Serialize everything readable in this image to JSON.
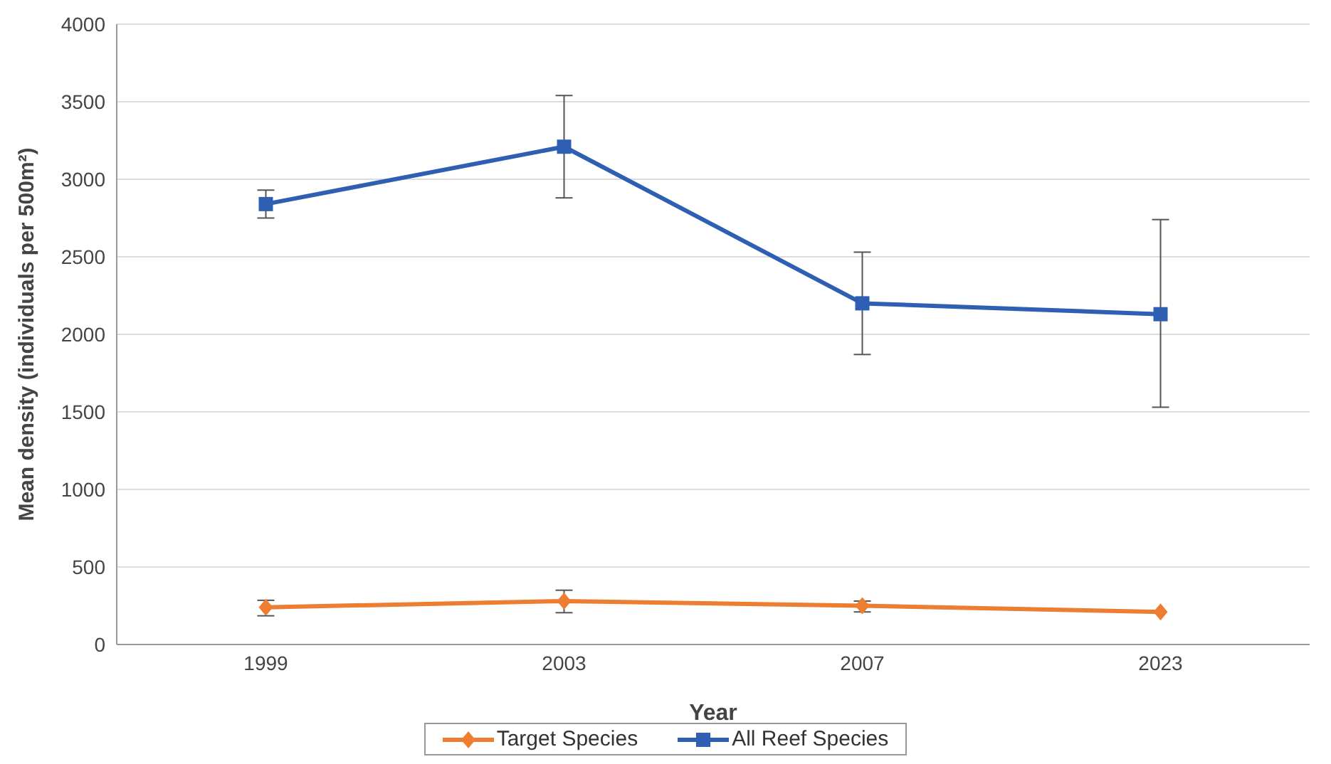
{
  "chart_data": {
    "type": "line",
    "xlabel": "Year",
    "ylabel": "Mean density (individuals per 500m²)",
    "categories": [
      "1999",
      "2003",
      "2007",
      "2023"
    ],
    "series": [
      {
        "name": "Target Species",
        "color": "#ed7d31",
        "marker": "diamond",
        "values": [
          240,
          280,
          250,
          210
        ],
        "errors": [
          [
            185,
            285
          ],
          [
            205,
            350
          ],
          [
            210,
            280
          ],
          null
        ]
      },
      {
        "name": "All Reef Species",
        "color": "#2f5fb3",
        "marker": "square",
        "values": [
          2840,
          3210,
          2200,
          2130
        ],
        "errors": [
          [
            2750,
            2930
          ],
          [
            2880,
            3540
          ],
          [
            1870,
            2530
          ],
          [
            1530,
            2740
          ]
        ]
      }
    ],
    "ylim": [
      0,
      4000
    ],
    "yticks": [
      0,
      500,
      1000,
      1500,
      2000,
      2500,
      3000,
      3500,
      4000
    ],
    "grid": "y",
    "legend": "bottom",
    "line_style": "solid"
  }
}
